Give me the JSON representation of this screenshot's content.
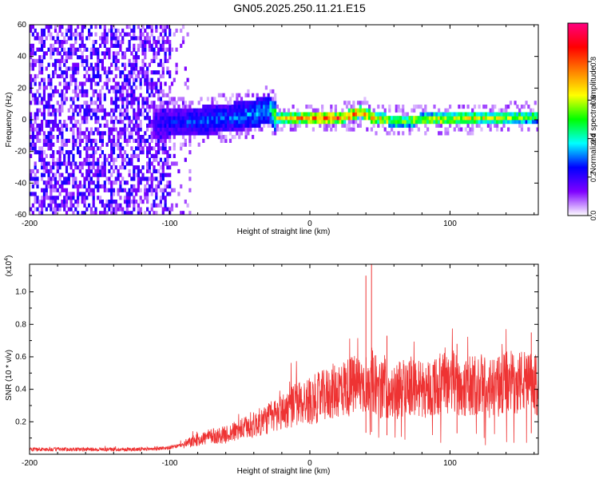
{
  "title": "GN05.2025.250.11.21.E15",
  "chart_data": [
    {
      "type": "heatmap",
      "xlabel": "Height of straight line (km)",
      "ylabel": "Frequency (Hz)",
      "xlim": [
        -200,
        163
      ],
      "ylim": [
        -60,
        60
      ],
      "xticks": [
        -200,
        -100,
        0,
        100
      ],
      "xtick_labels": [
        "-200",
        "-100",
        "0",
        "100"
      ],
      "yticks": [
        -60,
        -40,
        -20,
        0,
        20,
        40,
        60
      ],
      "ytick_labels": [
        "-60",
        "-40",
        "-20",
        "0",
        "20",
        "40",
        "60"
      ],
      "colorbar": {
        "label": "Normalized spectral amplitude",
        "range": [
          0,
          1
        ],
        "ticks": [
          0.0,
          0.2,
          0.4,
          0.6,
          0.8
        ],
        "tick_labels": [
          "0.0",
          "0.2",
          "0.4",
          "0.6",
          "0.8"
        ],
        "colormap": [
          "#ffffff",
          "#7f00ff",
          "#0000ff",
          "#00ffff",
          "#00ff00",
          "#ffff00",
          "#ff8000",
          "#ff0000",
          "#ff0080"
        ]
      },
      "regions": [
        {
          "x_range": [
            -200,
            -100
          ],
          "freq_range": [
            -60,
            60
          ],
          "level": "0.15-0.3",
          "description": "broadband scatter"
        },
        {
          "x_range": [
            -113,
            -25
          ],
          "freq_center": 0,
          "freq_halfwidth": 8,
          "peak_value": 0.3
        },
        {
          "x_range": [
            -25,
            163
          ],
          "freq_center": 0,
          "freq_halfwidth": 3,
          "peak_value": 0.85
        }
      ],
      "ridge": {
        "x": [
          -113,
          -100,
          -80,
          -60,
          -40,
          -30,
          -25,
          0,
          20,
          30,
          35,
          45,
          60,
          80,
          100,
          120,
          140,
          163
        ],
        "freq": [
          -4,
          -3,
          -2,
          0,
          3,
          6,
          0,
          0,
          0,
          2,
          4,
          0,
          -2,
          -1,
          -1,
          0,
          0,
          1
        ],
        "amplitude": [
          0.2,
          0.25,
          0.3,
          0.3,
          0.35,
          0.35,
          0.6,
          0.8,
          0.85,
          0.85,
          0.8,
          0.75,
          0.6,
          0.65,
          0.7,
          0.65,
          0.6,
          0.55
        ]
      }
    },
    {
      "type": "line",
      "xlabel": "Height of straight line (km)",
      "ylabel": "SNR (10 * v/v)",
      "y_multiplier_label": "(x10",
      "y_multiplier_exp": "4",
      "xlim": [
        -200,
        163
      ],
      "ylim": [
        0,
        1.17
      ],
      "xticks": [
        -200,
        -100,
        0,
        100
      ],
      "xtick_labels": [
        "-200",
        "-100",
        "0",
        "100"
      ],
      "yticks": [
        0.2,
        0.4,
        0.6,
        0.8,
        1.0
      ],
      "ytick_labels": [
        "0.2",
        "0.4",
        "0.6",
        "0.8",
        "1.0"
      ],
      "line_color": "#ee3333",
      "series": [
        {
          "x": [
            -200,
            -180,
            -160,
            -140,
            -120,
            -100,
            -90,
            -80,
            -70,
            -60,
            -50,
            -40,
            -30,
            -20,
            -10,
            0,
            10,
            20,
            30,
            40,
            45,
            50,
            60,
            70,
            80,
            90,
            100,
            110,
            120,
            130,
            140,
            150,
            163
          ],
          "y": [
            0.03,
            0.03,
            0.03,
            0.03,
            0.03,
            0.04,
            0.06,
            0.09,
            0.11,
            0.12,
            0.15,
            0.18,
            0.22,
            0.26,
            0.31,
            0.33,
            0.36,
            0.4,
            0.42,
            0.44,
            0.46,
            0.4,
            0.38,
            0.43,
            0.4,
            0.42,
            0.45,
            0.41,
            0.43,
            0.4,
            0.44,
            0.45,
            0.42
          ],
          "spikes": [
            {
              "x": 40,
              "y": 1.1
            },
            {
              "x": 44,
              "y": 1.17
            },
            {
              "x": 55,
              "y": 0.73
            },
            {
              "x": 105,
              "y": 0.68
            },
            {
              "x": 158,
              "y": 0.75
            }
          ]
        }
      ]
    }
  ]
}
